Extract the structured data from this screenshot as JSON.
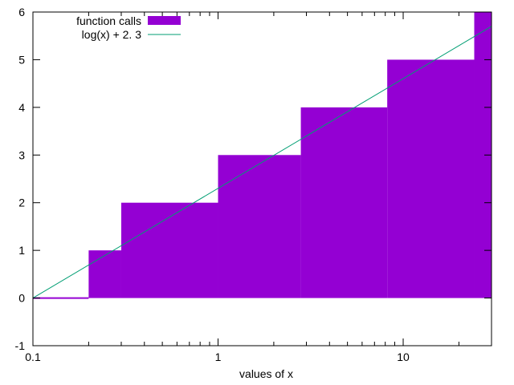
{
  "chart_data": {
    "type": "area",
    "title": "",
    "xlabel": "values of x",
    "ylabel": "",
    "x_scale": "log",
    "xlim": [
      0.1,
      30
    ],
    "ylim": [
      -1,
      6
    ],
    "x_ticks": [
      {
        "value": 0.1,
        "label": "0.1"
      },
      {
        "value": 1,
        "label": "1"
      },
      {
        "value": 10,
        "label": "10"
      }
    ],
    "y_ticks": [
      {
        "value": -1,
        "label": "-1"
      },
      {
        "value": 0,
        "label": "0"
      },
      {
        "value": 1,
        "label": "1"
      },
      {
        "value": 2,
        "label": "2"
      },
      {
        "value": 3,
        "label": "3"
      },
      {
        "value": 4,
        "label": "4"
      },
      {
        "value": 5,
        "label": "5"
      },
      {
        "value": 6,
        "label": "6"
      }
    ],
    "grid": false,
    "legend_position": "top-left",
    "series": [
      {
        "name": "function calls",
        "kind": "filled-steps",
        "color": "#9400d3",
        "steps": [
          {
            "x_start": 0.1,
            "x_end": 0.2,
            "y": 0
          },
          {
            "x_start": 0.2,
            "x_end": 0.3,
            "y": 1
          },
          {
            "x_start": 0.3,
            "x_end": 1.0,
            "y": 2
          },
          {
            "x_start": 1.0,
            "x_end": 2.8,
            "y": 3
          },
          {
            "x_start": 2.8,
            "x_end": 8.2,
            "y": 4
          },
          {
            "x_start": 8.2,
            "x_end": 24.2,
            "y": 5
          },
          {
            "x_start": 24.2,
            "x_end": 30,
            "y": 6
          }
        ]
      },
      {
        "name": "log(x) + 2. 3",
        "kind": "line",
        "color": "#009e73",
        "x": [
          0.1,
          30
        ],
        "y": [
          0.0,
          5.7
        ]
      }
    ]
  }
}
